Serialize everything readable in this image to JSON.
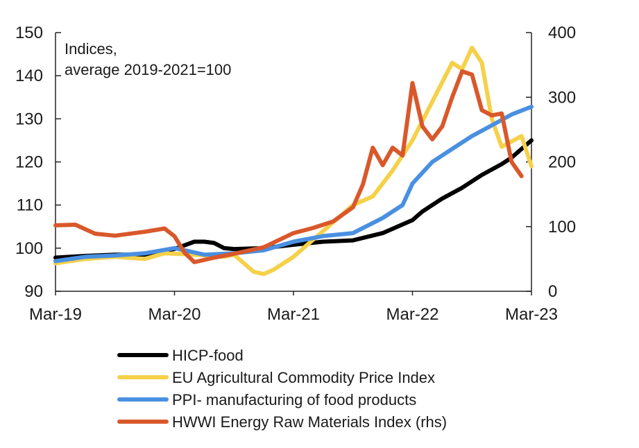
{
  "chart_data": {
    "type": "line",
    "annotation": [
      "Indices,",
      "average 2019-2021=100"
    ],
    "x_ticks": [
      "Mar-19",
      "Mar-20",
      "Mar-21",
      "Mar-22",
      "Mar-23"
    ],
    "y_left": {
      "range": [
        90,
        150
      ],
      "ticks": [
        "90",
        "100",
        "110",
        "120",
        "130",
        "140",
        "150"
      ]
    },
    "y_right": {
      "range": [
        0,
        400
      ],
      "ticks": [
        "0",
        "100",
        "200",
        "300",
        "400"
      ]
    },
    "legend_placement": "bottom",
    "grid": false,
    "series": [
      {
        "name": "HICP-food",
        "axis": "left",
        "color": "#000000",
        "points": [
          [
            "2019-03",
            97.8
          ],
          [
            "2019-06",
            98.2
          ],
          [
            "2019-09",
            98.5
          ],
          [
            "2019-12",
            98.5
          ],
          [
            "2020-03",
            99.8
          ],
          [
            "2020-05",
            101.5
          ],
          [
            "2020-06",
            101.5
          ],
          [
            "2020-07",
            101.2
          ],
          [
            "2020-08",
            100.0
          ],
          [
            "2020-09",
            99.8
          ],
          [
            "2020-12",
            100.0
          ],
          [
            "2021-03",
            100.8
          ],
          [
            "2021-06",
            101.5
          ],
          [
            "2021-09",
            101.8
          ],
          [
            "2021-12",
            103.5
          ],
          [
            "2022-02",
            105.5
          ],
          [
            "2022-03",
            106.5
          ],
          [
            "2022-04",
            108.5
          ],
          [
            "2022-06",
            111.5
          ],
          [
            "2022-08",
            114.0
          ],
          [
            "2022-10",
            117.0
          ],
          [
            "2022-12",
            119.5
          ],
          [
            "2023-01",
            121.0
          ],
          [
            "2023-02",
            123.0
          ],
          [
            "2023-03",
            125.0
          ]
        ]
      },
      {
        "name": "EU Agricultural Commodity Price Index",
        "axis": "left",
        "color": "#f5d14a",
        "points": [
          [
            "2019-03",
            96.5
          ],
          [
            "2019-06",
            97.5
          ],
          [
            "2019-09",
            98.0
          ],
          [
            "2019-12",
            97.5
          ],
          [
            "2020-02",
            98.8
          ],
          [
            "2020-05",
            98.5
          ],
          [
            "2020-08",
            98.0
          ],
          [
            "2020-09",
            98.5
          ],
          [
            "2020-10",
            96.5
          ],
          [
            "2020-11",
            94.5
          ],
          [
            "2020-12",
            94.0
          ],
          [
            "2021-01",
            95.0
          ],
          [
            "2021-03",
            98.0
          ],
          [
            "2021-05",
            102.0
          ],
          [
            "2021-07",
            106.0
          ],
          [
            "2021-09",
            110.0
          ],
          [
            "2021-11",
            112.0
          ],
          [
            "2022-01",
            118.0
          ],
          [
            "2022-03",
            125.0
          ],
          [
            "2022-05",
            134.0
          ],
          [
            "2022-07",
            143.0
          ],
          [
            "2022-08",
            141.5
          ],
          [
            "2022-09",
            146.5
          ],
          [
            "2022-10",
            143.0
          ],
          [
            "2022-11",
            130.0
          ],
          [
            "2022-12",
            123.5
          ],
          [
            "2023-02",
            126.0
          ],
          [
            "2023-03",
            119.0
          ]
        ]
      },
      {
        "name": "PPI- manufacturing of food products",
        "axis": "left",
        "color": "#4a90e2",
        "points": [
          [
            "2019-03",
            97.0
          ],
          [
            "2019-06",
            98.0
          ],
          [
            "2019-09",
            98.3
          ],
          [
            "2019-12",
            98.8
          ],
          [
            "2020-03",
            100.0
          ],
          [
            "2020-06",
            98.5
          ],
          [
            "2020-09",
            98.8
          ],
          [
            "2020-12",
            99.5
          ],
          [
            "2021-03",
            101.5
          ],
          [
            "2021-06",
            102.8
          ],
          [
            "2021-09",
            103.5
          ],
          [
            "2021-12",
            107.0
          ],
          [
            "2022-02",
            110.0
          ],
          [
            "2022-03",
            115.0
          ],
          [
            "2022-05",
            120.0
          ],
          [
            "2022-07",
            123.0
          ],
          [
            "2022-09",
            126.0
          ],
          [
            "2022-11",
            128.5
          ],
          [
            "2023-01",
            131.0
          ],
          [
            "2023-03",
            132.8
          ]
        ]
      },
      {
        "name": "HWWI Energy Raw Materials Index (rhs)",
        "axis": "right",
        "color": "#d9582b",
        "points": [
          [
            "2019-03",
            102
          ],
          [
            "2019-05",
            103
          ],
          [
            "2019-07",
            89
          ],
          [
            "2019-09",
            86
          ],
          [
            "2019-12",
            92
          ],
          [
            "2020-02",
            97
          ],
          [
            "2020-03",
            85
          ],
          [
            "2020-04",
            60
          ],
          [
            "2020-05",
            45
          ],
          [
            "2020-07",
            52
          ],
          [
            "2020-09",
            58
          ],
          [
            "2020-12",
            68
          ],
          [
            "2021-03",
            90
          ],
          [
            "2021-05",
            98
          ],
          [
            "2021-07",
            108
          ],
          [
            "2021-09",
            130
          ],
          [
            "2021-10",
            165
          ],
          [
            "2021-11",
            222
          ],
          [
            "2021-12",
            195
          ],
          [
            "2022-01",
            222
          ],
          [
            "2022-02",
            210
          ],
          [
            "2022-03",
            322
          ],
          [
            "2022-04",
            255
          ],
          [
            "2022-05",
            235
          ],
          [
            "2022-06",
            255
          ],
          [
            "2022-07",
            300
          ],
          [
            "2022-08",
            340
          ],
          [
            "2022-09",
            335
          ],
          [
            "2022-10",
            280
          ],
          [
            "2022-11",
            272
          ],
          [
            "2022-12",
            275
          ],
          [
            "2023-01",
            200
          ],
          [
            "2023-02",
            178
          ]
        ]
      }
    ]
  }
}
